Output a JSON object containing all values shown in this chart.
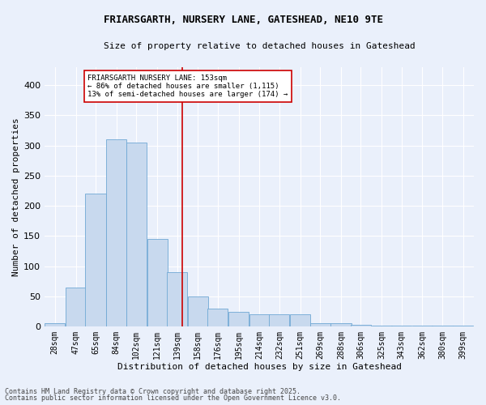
{
  "title_line1": "FRIARSGARTH, NURSERY LANE, GATESHEAD, NE10 9TE",
  "title_line2": "Size of property relative to detached houses in Gateshead",
  "xlabel": "Distribution of detached houses by size in Gateshead",
  "ylabel": "Number of detached properties",
  "bins": [
    28,
    47,
    65,
    84,
    102,
    121,
    139,
    158,
    176,
    195,
    214,
    232,
    251,
    269,
    288,
    306,
    325,
    343,
    362,
    380,
    399
  ],
  "values": [
    5,
    65,
    220,
    310,
    305,
    145,
    90,
    50,
    30,
    25,
    20,
    20,
    20,
    5,
    5,
    3,
    2,
    1,
    2,
    1,
    1
  ],
  "bar_color": "#c8d9ee",
  "bar_edge_color": "#6fa8d4",
  "vline_x": 153,
  "vline_color": "#cc0000",
  "annotation_box_text": "FRIARSGARTH NURSERY LANE: 153sqm\n← 86% of detached houses are smaller (1,115)\n13% of semi-detached houses are larger (174) →",
  "annotation_box_color": "#ffffff",
  "annotation_box_edge": "#cc0000",
  "footer_line1": "Contains HM Land Registry data © Crown copyright and database right 2025.",
  "footer_line2": "Contains public sector information licensed under the Open Government Licence v3.0.",
  "bg_color": "#eaf0fb",
  "plot_bg_color": "#eaf0fb",
  "ylim": [
    0,
    430
  ],
  "yticks": [
    0,
    50,
    100,
    150,
    200,
    250,
    300,
    350,
    400
  ],
  "title_fontsize": 9,
  "subtitle_fontsize": 8,
  "ylabel_fontsize": 8,
  "xlabel_fontsize": 8,
  "tick_fontsize": 7,
  "footer_fontsize": 6
}
